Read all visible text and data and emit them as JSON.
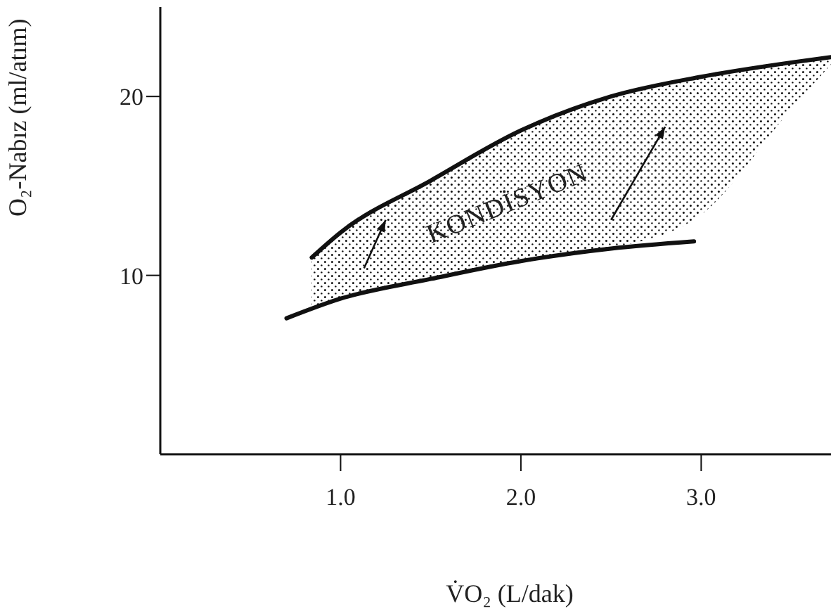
{
  "chart_data": {
    "type": "line",
    "xlabel": "V̇O₂ (L/dak)",
    "ylabel": "O₂-Nabız  (ml/atım)",
    "xlim": [
      0,
      3.72
    ],
    "ylim": [
      0,
      25
    ],
    "xticks": [
      {
        "value": 1,
        "label": "1.0"
      },
      {
        "value": 2,
        "label": "2.0"
      },
      {
        "value": 3,
        "label": "3.0"
      }
    ],
    "yticks": [
      10,
      20
    ],
    "marker": "none",
    "line_style": "solid",
    "annotations": [
      "KONDİSYON"
    ],
    "series": [
      {
        "color": "#111111",
        "x": [
          0.84,
          1.0,
          1.5,
          2.0,
          2.5,
          3.0,
          3.5,
          3.72
        ],
        "values": [
          11.0,
          12.4,
          15.3,
          18.1,
          20.0,
          21.1,
          21.9,
          22.2
        ],
        "lower": [
          8.2,
          8.7,
          9.8,
          10.8,
          11.5,
          13.4,
          19.3,
          21.8
        ],
        "upper": [
          11.0,
          12.4,
          15.3,
          18.1,
          20.0,
          21.1,
          21.9,
          22.2
        ]
      },
      {
        "color": "#111111",
        "x": [
          0.7,
          1.0,
          1.5,
          2.0,
          2.5,
          2.96
        ],
        "values": [
          7.6,
          8.7,
          9.8,
          10.8,
          11.5,
          11.9
        ]
      }
    ]
  }
}
